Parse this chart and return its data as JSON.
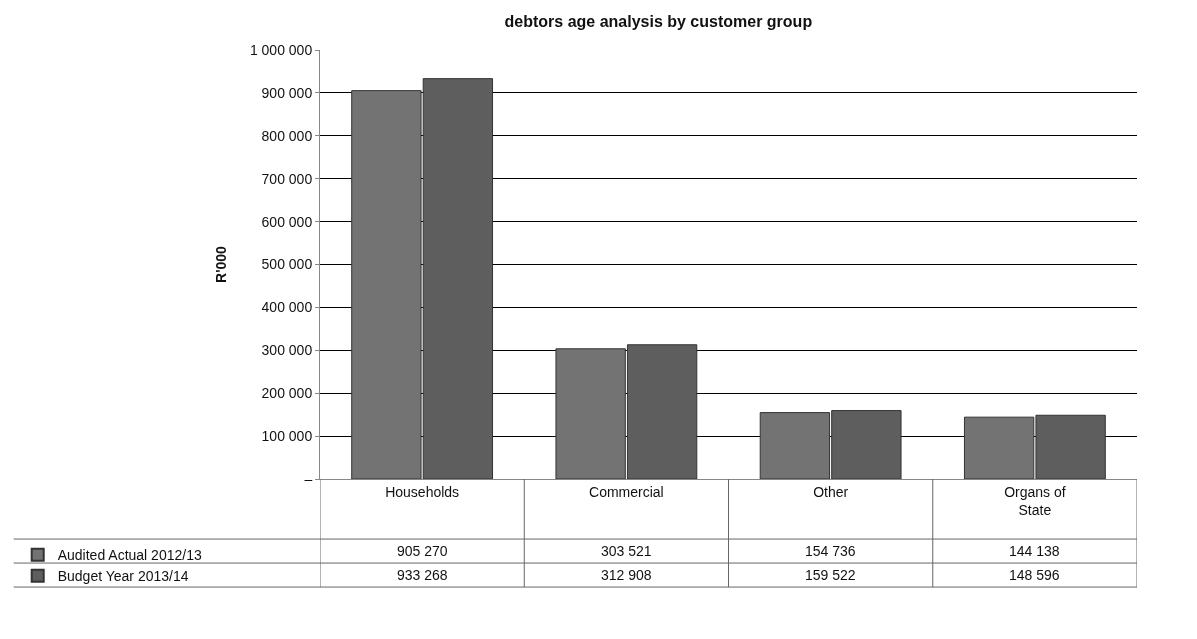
{
  "chart_data": {
    "type": "bar",
    "title": "debtors age analysis by customer group",
    "ylabel": "R'000",
    "categories": [
      "Households",
      "Commercial",
      "Other",
      "Organs of State"
    ],
    "series": [
      {
        "name": "Audited Actual 2012/13",
        "color": "#737373",
        "values": [
          905270,
          303521,
          154736,
          144138
        ],
        "value_labels": [
          "905 270",
          "303 521",
          "154 736",
          "144 138"
        ]
      },
      {
        "name": "Budget Year 2013/14",
        "color": "#5e5e5e",
        "values": [
          933268,
          312908,
          159522,
          148596
        ],
        "value_labels": [
          "933 268",
          "312 908",
          "159 522",
          "148 596"
        ]
      }
    ],
    "ylim": [
      0,
      1000000
    ],
    "yticks": [
      {
        "value": 0,
        "label": "–"
      },
      {
        "value": 100000,
        "label": "100 000"
      },
      {
        "value": 200000,
        "label": "200 000"
      },
      {
        "value": 300000,
        "label": "300 000"
      },
      {
        "value": 400000,
        "label": "400 000"
      },
      {
        "value": 500000,
        "label": "500 000"
      },
      {
        "value": 600000,
        "label": "600 000"
      },
      {
        "value": 700000,
        "label": "700 000"
      },
      {
        "value": 800000,
        "label": "800 000"
      },
      {
        "value": 900000,
        "label": "900 000"
      },
      {
        "value": 1000000,
        "label": "1 000 000"
      }
    ],
    "grid": "y",
    "legend": "bottom left"
  }
}
